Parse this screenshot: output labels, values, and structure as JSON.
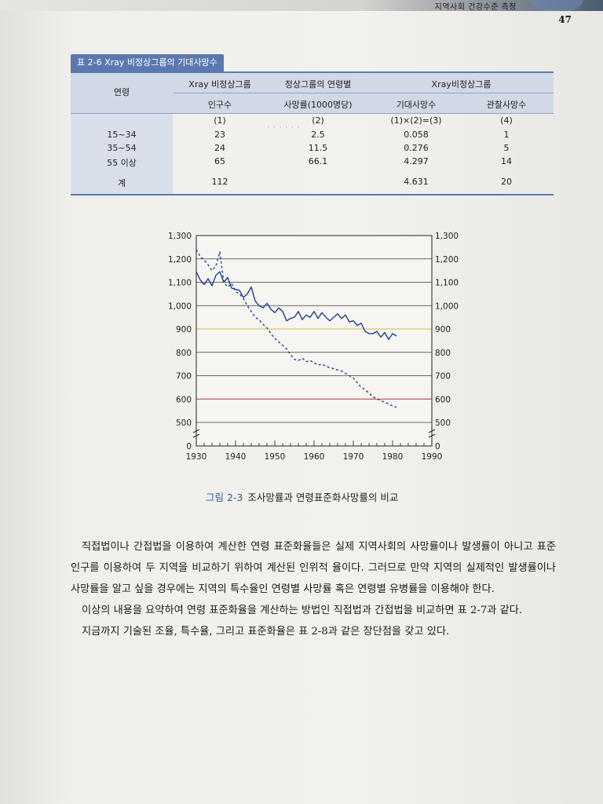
{
  "header": {
    "title": "지역사회 건강수준 측정",
    "page_number": "47"
  },
  "table": {
    "caption": "표 2-6  Xray 비정상그룹의 기대사망수",
    "headers": {
      "age": "연령",
      "col1_top": "Xray 비정상그룹",
      "col1_bottom": "인구수",
      "col2_top": "정상그룹의 연령별",
      "col2_bottom": "사망률(1000명당)",
      "col34_top": "Xray비정상그룹",
      "col3_bottom": "기대사망수",
      "col4_bottom": "관찰사망수"
    },
    "codes": [
      "(1)",
      "(2)",
      "(1)×(2)=(3)",
      "(4)"
    ],
    "rows": [
      {
        "age": "15~34",
        "pop": "23",
        "rate": "2.5",
        "expected": "0.058",
        "observed": "1"
      },
      {
        "age": "35~54",
        "pop": "24",
        "rate": "11.5",
        "expected": "0.276",
        "observed": "5"
      },
      {
        "age": "55 이상",
        "pop": "65",
        "rate": "66.1",
        "expected": "4.297",
        "observed": "14"
      }
    ],
    "total": {
      "age": "계",
      "pop": "112",
      "rate": "",
      "expected": "4.631",
      "observed": "20"
    }
  },
  "chart_data": {
    "type": "line",
    "title": "",
    "xlabel": "",
    "ylabel": "",
    "xlim": [
      1930,
      1990
    ],
    "ylim": [
      0,
      1300
    ],
    "x_ticks": [
      1930,
      1940,
      1950,
      1960,
      1970,
      1980,
      1990
    ],
    "y_ticks": [
      0,
      500,
      600,
      700,
      800,
      900,
      1000,
      1100,
      1200,
      1300
    ],
    "axis_break": "between 0 and 500",
    "series": [
      {
        "style": "solid",
        "x": [
          1930,
          1931,
          1932,
          1933,
          1934,
          1935,
          1936,
          1937,
          1938,
          1939,
          1940,
          1941,
          1942,
          1943,
          1944,
          1945,
          1946,
          1947,
          1948,
          1949,
          1950,
          1951,
          1952,
          1953,
          1954,
          1955,
          1956,
          1957,
          1958,
          1959,
          1960,
          1961,
          1962,
          1963,
          1964,
          1965,
          1966,
          1967,
          1968,
          1969,
          1970,
          1971,
          1972,
          1973,
          1974,
          1975,
          1976,
          1977,
          1978,
          1979,
          1980,
          1981
        ],
        "values": [
          1145,
          1110,
          1090,
          1115,
          1085,
          1130,
          1145,
          1100,
          1120,
          1075,
          1070,
          1065,
          1035,
          1050,
          1080,
          1020,
          1000,
          990,
          1010,
          985,
          970,
          990,
          975,
          935,
          945,
          950,
          975,
          940,
          960,
          950,
          975,
          945,
          970,
          950,
          935,
          950,
          965,
          945,
          960,
          930,
          935,
          915,
          925,
          890,
          880,
          880,
          890,
          865,
          885,
          855,
          880,
          870
        ]
      },
      {
        "style": "dashed",
        "x": [
          1930,
          1931,
          1932,
          1933,
          1934,
          1935,
          1936,
          1937,
          1938,
          1939,
          1940,
          1941,
          1942,
          1943,
          1944,
          1945,
          1946,
          1947,
          1948,
          1949,
          1950,
          1951,
          1952,
          1953,
          1954,
          1955,
          1956,
          1957,
          1958,
          1959,
          1960,
          1961,
          1962,
          1963,
          1964,
          1965,
          1966,
          1967,
          1968,
          1969,
          1970,
          1971,
          1972,
          1973,
          1974,
          1975,
          1976,
          1977,
          1978,
          1979,
          1980,
          1981
        ],
        "values": [
          1240,
          1210,
          1195,
          1175,
          1150,
          1170,
          1230,
          1100,
          1080,
          1095,
          1060,
          1050,
          1030,
          1000,
          975,
          950,
          940,
          920,
          905,
          880,
          860,
          845,
          830,
          815,
          790,
          770,
          765,
          775,
          760,
          765,
          755,
          745,
          750,
          740,
          735,
          730,
          725,
          720,
          710,
          700,
          690,
          670,
          650,
          640,
          625,
          610,
          600,
          595,
          585,
          580,
          570,
          565
        ]
      }
    ]
  },
  "figure_caption": {
    "label": "그림 2-3",
    "text": "조사망률과 연령표준화사망률의 비교"
  },
  "body": {
    "paragraphs": [
      "직접법이나 간접법을 이용하여 계산한 연령 표준화율들은 실제 지역사회의 사망률이나 발생률이 아니고 표준인구를 이용하여 두 지역을 비교하기 위하여 계산된 인위적 율이다. 그러므로 만약 지역의 실제적인 발생률이나 사망률을 알고 싶을 경우에는 지역의 특수율인 연령별 사망률 혹은 연령별 유병률을 이용해야 한다.",
      "이상의 내용을 요약하여 연령 표준화율을 계산하는 방법인 직접법과 간접법을 비교하면 표 2-7과 같다.",
      "지금까지 기술된 조율, 특수율, 그리고 표준화율은 표 2-8과 같은 장단점을 갖고 있다."
    ]
  }
}
